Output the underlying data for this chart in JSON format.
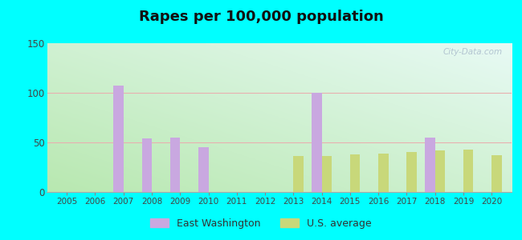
{
  "title": "Rapes per 100,000 population",
  "years": [
    2005,
    2006,
    2007,
    2008,
    2009,
    2010,
    2011,
    2012,
    2013,
    2014,
    2015,
    2016,
    2017,
    2018,
    2019,
    2020
  ],
  "east_washington": [
    0,
    0,
    107,
    54,
    55,
    45,
    0,
    0,
    0,
    100,
    0,
    0,
    0,
    55,
    0,
    0
  ],
  "us_average": [
    0,
    0,
    0,
    0,
    0,
    0,
    0,
    0,
    36,
    36,
    38,
    39,
    40,
    42,
    43,
    37
  ],
  "east_washington_color": "#c9a8e0",
  "us_average_color": "#c8d87a",
  "ylim": [
    0,
    150
  ],
  "yticks": [
    0,
    50,
    100,
    150
  ],
  "bg_outer": "#00ffff",
  "bg_plot_bottom_left": "#b8e8b0",
  "bg_plot_top_right": "#e8faf5",
  "watermark": "City-Data.com",
  "title_fontsize": 13,
  "bar_width": 0.35,
  "legend_fontsize": 9
}
